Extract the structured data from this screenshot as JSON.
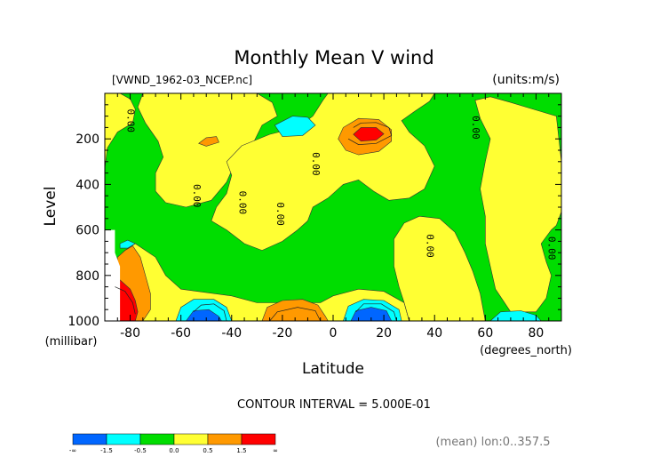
{
  "chart_data": {
    "type": "heatmap",
    "title": "Monthly Mean V wind",
    "file_label": "[VWND_1962-03_NCEP.nc]",
    "units_label": "(units:m/s)",
    "xlabel": "Latitude",
    "x_units": "(degrees_north)",
    "ylabel": "Level",
    "y_units": "(millibar)",
    "x_ticks": [
      -80,
      -60,
      -40,
      -20,
      0,
      20,
      40,
      60,
      80
    ],
    "y_ticks": [
      200,
      400,
      600,
      800,
      1000
    ],
    "xlim": [
      -90,
      90
    ],
    "ylim": [
      1000,
      0
    ],
    "contour_interval_text": "CONTOUR INTERVAL = 5.000E-01",
    "zero_contour_label": "0.00",
    "zero_contour_positions": [
      {
        "lat": -81,
        "lev": 120
      },
      {
        "lat": -55,
        "lev": 450
      },
      {
        "lat": -37,
        "lev": 480
      },
      {
        "lat": -22,
        "lev": 530
      },
      {
        "lat": -8,
        "lev": 310
      },
      {
        "lat": 37,
        "lev": 670
      },
      {
        "lat": 55,
        "lev": 150
      },
      {
        "lat": 85,
        "lev": 680
      }
    ],
    "legend": {
      "colors": [
        "#0066ff",
        "#00ffff",
        "#00dd00",
        "#ffff33",
        "#ff9900",
        "#ff0000"
      ],
      "labels": [
        "-∞",
        "-1.5",
        "-0.5",
        "0.0",
        "0.5",
        "1.5",
        "∞"
      ]
    },
    "fill_regions": [
      {
        "color": "#00dd00",
        "points": [
          [
            -90,
            0
          ],
          [
            90,
            0
          ],
          [
            90,
            1000
          ],
          [
            -90,
            1000
          ]
        ]
      },
      {
        "color": "#ffff33",
        "points": [
          [
            -88,
            0
          ],
          [
            -84,
            0
          ],
          [
            -80,
            25
          ],
          [
            -78,
            70
          ],
          [
            -79,
            130
          ],
          [
            -85,
            170
          ],
          [
            -89,
            240
          ],
          [
            -90,
            330
          ],
          [
            -90,
            0
          ]
        ]
      },
      {
        "color": "#ffff33",
        "points": [
          [
            -75,
            0
          ],
          [
            -30,
            0
          ],
          [
            -24,
            40
          ],
          [
            -22,
            100
          ],
          [
            -28,
            140
          ],
          [
            -32,
            230
          ],
          [
            -38,
            290
          ],
          [
            -42,
            390
          ],
          [
            -48,
            470
          ],
          [
            -58,
            500
          ],
          [
            -66,
            480
          ],
          [
            -70,
            430
          ],
          [
            -70,
            350
          ],
          [
            -67,
            280
          ],
          [
            -69,
            210
          ],
          [
            -74,
            130
          ],
          [
            -77,
            60
          ]
        ]
      },
      {
        "color": "#ffff33",
        "points": [
          [
            -36,
            230
          ],
          [
            -25,
            180
          ],
          [
            -14,
            150
          ],
          [
            -8,
            100
          ],
          [
            -4,
            30
          ],
          [
            -2,
            0
          ],
          [
            40,
            0
          ],
          [
            38,
            35
          ],
          [
            32,
            80
          ],
          [
            27,
            120
          ],
          [
            30,
            170
          ],
          [
            36,
            230
          ],
          [
            40,
            320
          ],
          [
            36,
            420
          ],
          [
            30,
            460
          ],
          [
            22,
            470
          ],
          [
            16,
            430
          ],
          [
            10,
            380
          ],
          [
            4,
            400
          ],
          [
            -2,
            460
          ],
          [
            -8,
            500
          ],
          [
            -10,
            560
          ],
          [
            -14,
            600
          ],
          [
            -20,
            650
          ],
          [
            -28,
            690
          ],
          [
            -35,
            660
          ],
          [
            -42,
            600
          ],
          [
            -48,
            560
          ],
          [
            -46,
            500
          ],
          [
            -42,
            440
          ],
          [
            -40,
            360
          ],
          [
            -42,
            300
          ]
        ]
      },
      {
        "color": "#ffff33",
        "points": [
          [
            -84,
            730
          ],
          [
            -82,
            690
          ],
          [
            -78,
            660
          ],
          [
            -70,
            720
          ],
          [
            -66,
            800
          ],
          [
            -60,
            860
          ],
          [
            -40,
            890
          ],
          [
            -30,
            920
          ],
          [
            -5,
            920
          ],
          [
            0,
            890
          ],
          [
            10,
            860
          ],
          [
            20,
            870
          ],
          [
            28,
            920
          ],
          [
            30,
            1000
          ],
          [
            -84,
            1000
          ]
        ]
      },
      {
        "color": "#ffff33",
        "points": [
          [
            24,
            640
          ],
          [
            28,
            570
          ],
          [
            34,
            540
          ],
          [
            42,
            550
          ],
          [
            48,
            610
          ],
          [
            52,
            700
          ],
          [
            55,
            780
          ],
          [
            58,
            880
          ],
          [
            60,
            1000
          ],
          [
            30,
            1000
          ],
          [
            28,
            920
          ],
          [
            26,
            850
          ],
          [
            24,
            760
          ]
        ]
      },
      {
        "color": "#ffff33",
        "points": [
          [
            56,
            30
          ],
          [
            62,
            15
          ],
          [
            70,
            40
          ],
          [
            76,
            60
          ],
          [
            82,
            80
          ],
          [
            88,
            100
          ],
          [
            90,
            300
          ],
          [
            90,
            520
          ],
          [
            88,
            580
          ],
          [
            86,
            600
          ],
          [
            82,
            660
          ],
          [
            84,
            740
          ],
          [
            86,
            800
          ],
          [
            84,
            900
          ],
          [
            80,
            960
          ],
          [
            70,
            960
          ],
          [
            64,
            860
          ],
          [
            62,
            760
          ],
          [
            60,
            660
          ],
          [
            60,
            540
          ],
          [
            58,
            420
          ],
          [
            60,
            300
          ],
          [
            62,
            200
          ],
          [
            58,
            110
          ]
        ]
      },
      {
        "color": "#ff9900",
        "points": [
          [
            -85,
            720
          ],
          [
            -82,
            690
          ],
          [
            -79,
            670
          ],
          [
            -76,
            720
          ],
          [
            -74,
            800
          ],
          [
            -72,
            880
          ],
          [
            -72,
            950
          ],
          [
            -75,
            1000
          ],
          [
            -86,
            1000
          ],
          [
            -86,
            900
          ]
        ]
      },
      {
        "color": "#ff9900",
        "points": [
          [
            -28,
            1000
          ],
          [
            -26,
            940
          ],
          [
            -20,
            910
          ],
          [
            -12,
            905
          ],
          [
            -6,
            930
          ],
          [
            -3,
            980
          ],
          [
            -2,
            1000
          ]
        ]
      },
      {
        "color": "#ff9900",
        "points": [
          [
            2,
            200
          ],
          [
            4,
            150
          ],
          [
            10,
            110
          ],
          [
            18,
            115
          ],
          [
            23,
            160
          ],
          [
            23,
            210
          ],
          [
            18,
            255
          ],
          [
            10,
            270
          ],
          [
            5,
            250
          ]
        ]
      },
      {
        "color": "#ff9900",
        "points": [
          [
            -53,
            220
          ],
          [
            -50,
            195
          ],
          [
            -46,
            190
          ],
          [
            -45,
            215
          ],
          [
            -50,
            232
          ]
        ]
      },
      {
        "color": "#ff0000",
        "points": [
          [
            8,
            180
          ],
          [
            11,
            150
          ],
          [
            17,
            150
          ],
          [
            20,
            178
          ],
          [
            17,
            205
          ],
          [
            11,
            210
          ]
        ]
      },
      {
        "color": "#ff0000",
        "points": [
          [
            -86,
            800
          ],
          [
            -84,
            820
          ],
          [
            -80,
            860
          ],
          [
            -78,
            910
          ],
          [
            -77,
            960
          ],
          [
            -78,
            1000
          ],
          [
            -86,
            1000
          ]
        ]
      },
      {
        "color": "#00ffff",
        "points": [
          [
            -23,
            140
          ],
          [
            -16,
            100
          ],
          [
            -10,
            105
          ],
          [
            -7,
            140
          ],
          [
            -12,
            185
          ],
          [
            -20,
            190
          ]
        ]
      },
      {
        "color": "#00ffff",
        "points": [
          [
            -62,
            1000
          ],
          [
            -60,
            940
          ],
          [
            -55,
            905
          ],
          [
            -47,
            905
          ],
          [
            -42,
            940
          ],
          [
            -40,
            1000
          ]
        ]
      },
      {
        "color": "#00ffff",
        "points": [
          [
            4,
            1000
          ],
          [
            6,
            935
          ],
          [
            12,
            905
          ],
          [
            20,
            910
          ],
          [
            26,
            950
          ],
          [
            27,
            1000
          ]
        ]
      },
      {
        "color": "#00ffff",
        "points": [
          [
            62,
            1000
          ],
          [
            66,
            960
          ],
          [
            74,
            955
          ],
          [
            80,
            975
          ],
          [
            82,
            1000
          ]
        ]
      },
      {
        "color": "#00ffff",
        "points": [
          [
            -84,
            660
          ],
          [
            -81,
            645
          ],
          [
            -78,
            660
          ],
          [
            -81,
            680
          ],
          [
            -84,
            680
          ]
        ]
      },
      {
        "color": "#0066ff",
        "points": [
          [
            -58,
            1000
          ],
          [
            -55,
            955
          ],
          [
            -49,
            950
          ],
          [
            -45,
            980
          ],
          [
            -44,
            1000
          ]
        ]
      },
      {
        "color": "#0066ff",
        "points": [
          [
            7,
            1000
          ],
          [
            9,
            955
          ],
          [
            15,
            940
          ],
          [
            21,
            955
          ],
          [
            23,
            1000
          ]
        ]
      }
    ],
    "white_regions": [
      {
        "points": [
          [
            -90,
            600
          ],
          [
            -86,
            600
          ],
          [
            -86,
            700
          ],
          [
            -84,
            760
          ],
          [
            -84,
            1000
          ],
          [
            -90,
            1000
          ]
        ]
      }
    ],
    "contour_lines": [
      {
        "points": [
          [
            8,
            150
          ],
          [
            11,
            130
          ],
          [
            17,
            128
          ],
          [
            22,
            150
          ],
          [
            23,
            185
          ],
          [
            17,
            220
          ],
          [
            10,
            225
          ],
          [
            6,
            200
          ]
        ]
      },
      {
        "points": [
          [
            -55,
            960
          ],
          [
            -52,
            930
          ],
          [
            -47,
            925
          ],
          [
            -43,
            955
          ],
          [
            -42,
            1000
          ]
        ]
      },
      {
        "points": [
          [
            9,
            960
          ],
          [
            12,
            925
          ],
          [
            19,
            925
          ],
          [
            24,
            960
          ],
          [
            25,
            1000
          ]
        ]
      },
      {
        "points": [
          [
            -25,
            1000
          ],
          [
            -22,
            960
          ],
          [
            -14,
            940
          ],
          [
            -7,
            955
          ],
          [
            -5,
            1000
          ]
        ]
      },
      {
        "points": [
          [
            -86,
            850
          ],
          [
            -82,
            870
          ],
          [
            -79,
            920
          ],
          [
            -78,
            970
          ]
        ]
      }
    ],
    "axis_label_mean": "(mean) lon:0..357.5"
  }
}
